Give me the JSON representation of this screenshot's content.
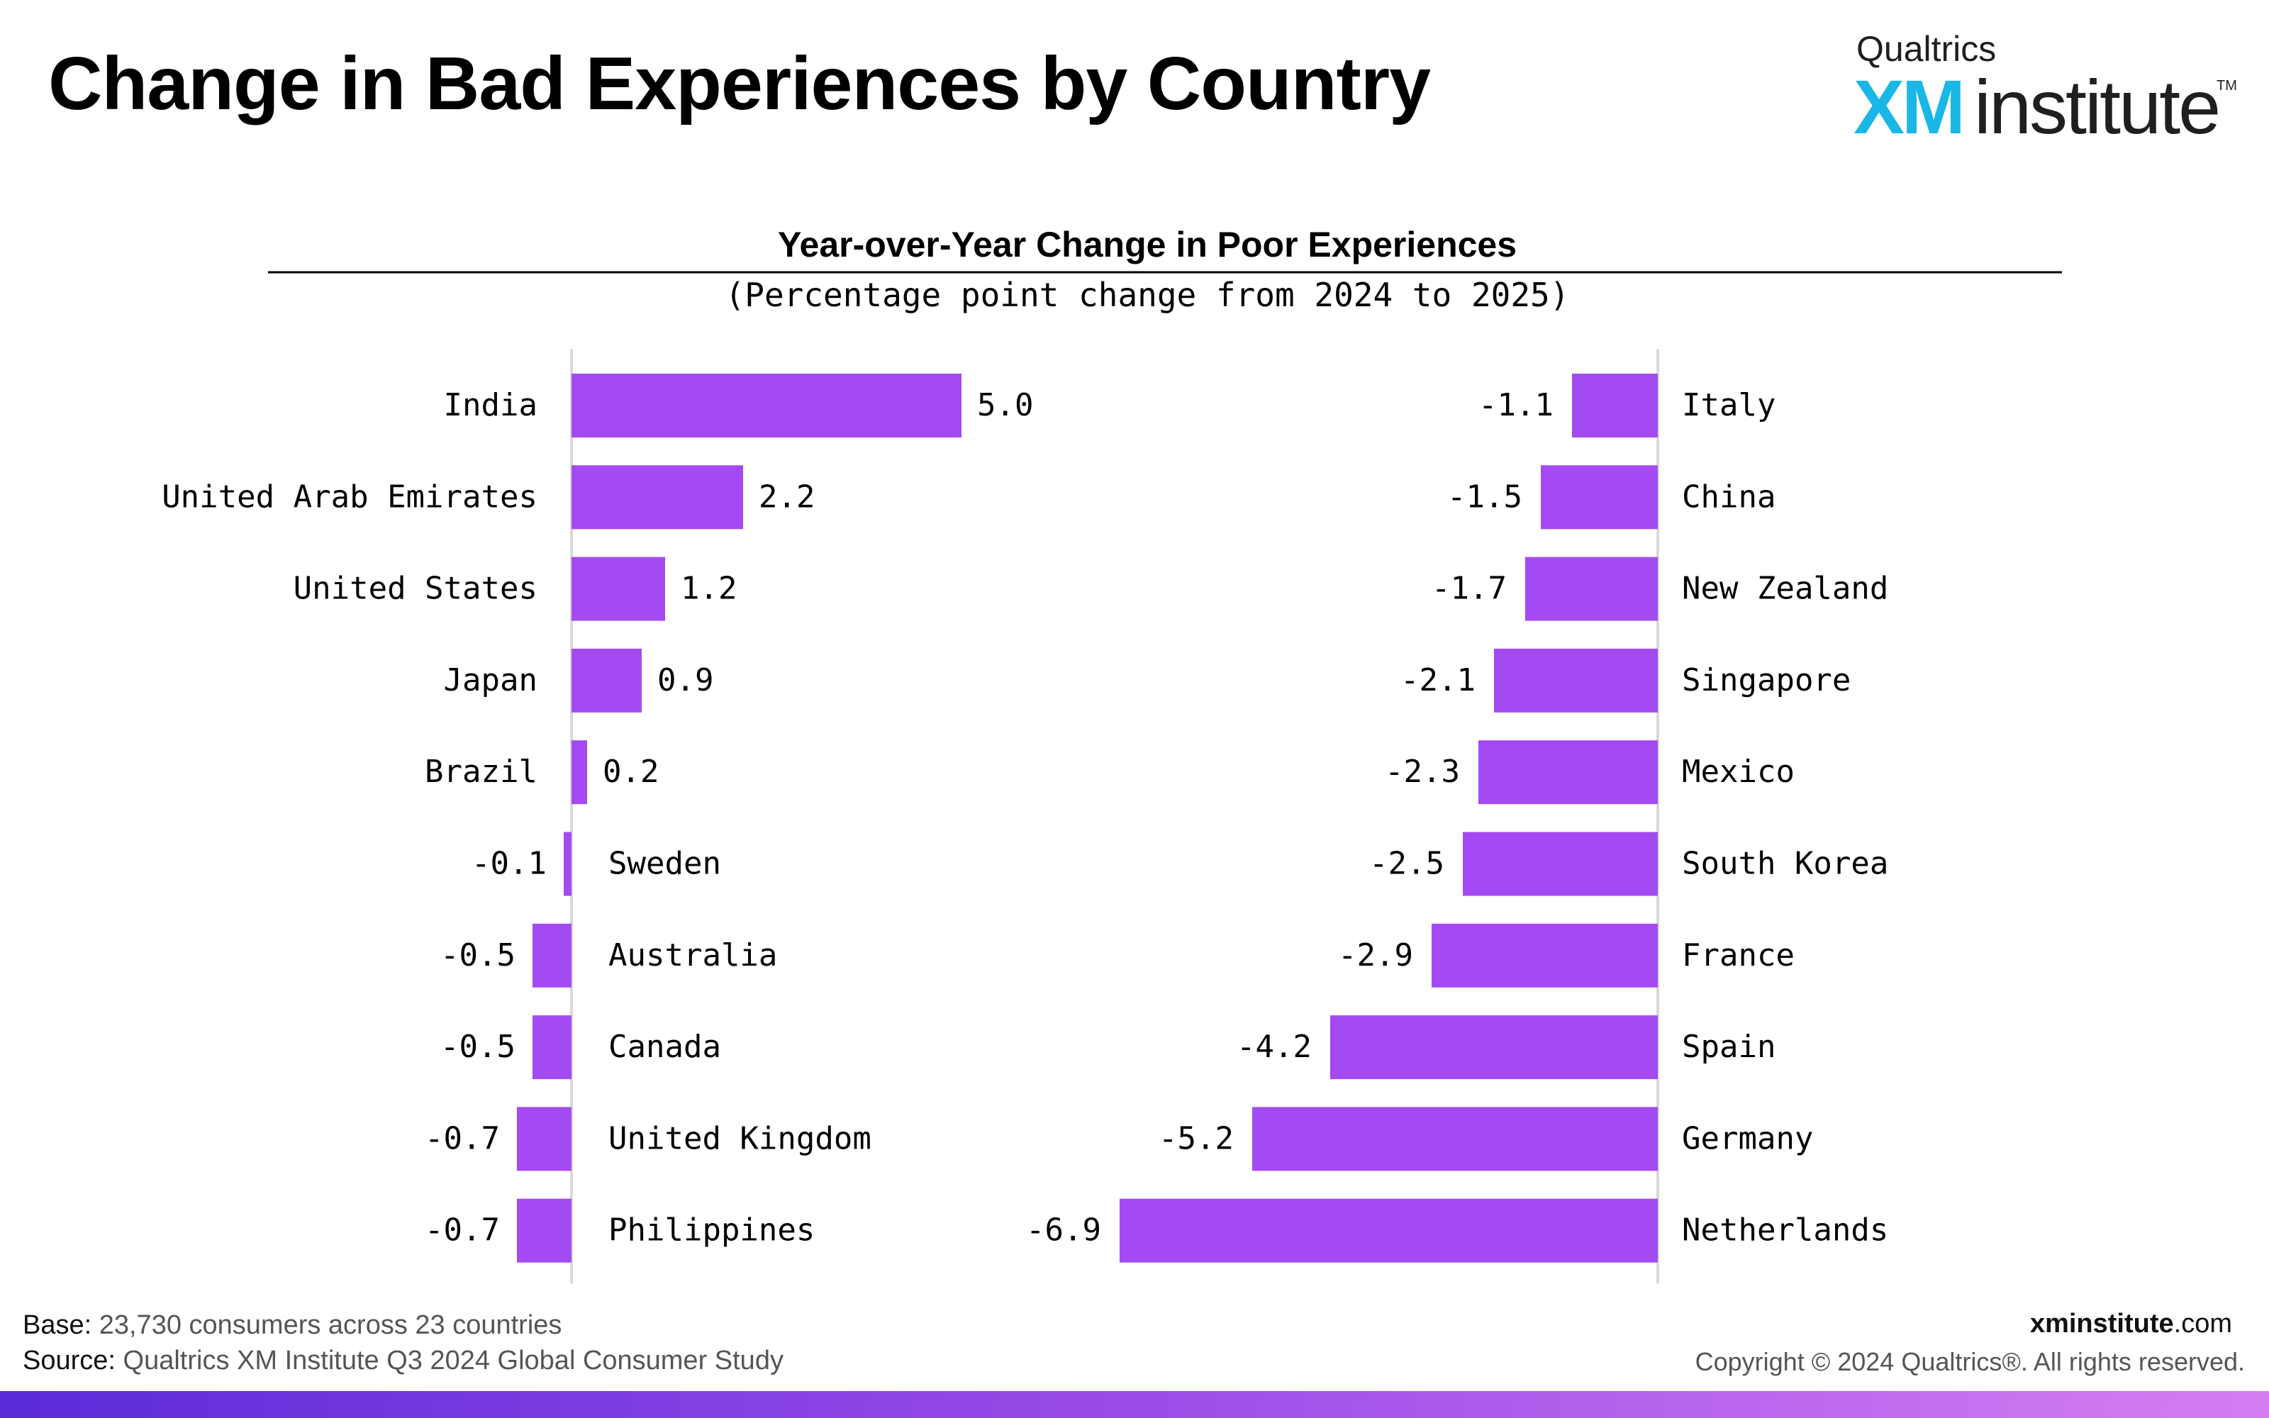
{
  "page": {
    "title": "Change in Bad Experiences by Country"
  },
  "logo": {
    "top": "Qualtrics",
    "xm": "XM",
    "institute": "institute",
    "tm": "TM"
  },
  "footer": {
    "base_label": "Base:",
    "base_text": " 23,730 consumers across 23 countries",
    "source_label": "Source:",
    "source_text": " Qualtrics XM Institute Q3 2024 Global Consumer Study",
    "site_bold": "xminstitute",
    "site_rest": ".com",
    "copyright": "Copyright © 2024 Qualtrics®. All rights reserved."
  },
  "colors": {
    "bar": "#a44af2",
    "axis": "#d9d9d9",
    "gradient_start": "#5b2bd9",
    "gradient_end": "#d57ef2",
    "logo_accent": "#19b7e6"
  },
  "chart_data": [
    {
      "type": "bar",
      "orientation": "horizontal",
      "title": "Year-over-Year Change in Poor Experiences",
      "subtitle": "(Percentage point change from 2024 to 2025)",
      "categories": [
        "India",
        "United Arab Emirates",
        "United States",
        "Japan",
        "Brazil",
        "Sweden",
        "Australia",
        "Canada",
        "United Kingdom",
        "Philippines"
      ],
      "values": [
        5.0,
        2.2,
        1.2,
        0.9,
        0.2,
        -0.1,
        -0.5,
        -0.5,
        -0.7,
        -0.7
      ],
      "value_labels": [
        "5.0",
        "2.2",
        "1.2",
        "0.9",
        "0.2",
        "-0.1",
        "-0.5",
        "-0.5",
        "-0.7",
        "-0.7"
      ],
      "grid": false,
      "data_labels": true
    },
    {
      "type": "bar",
      "orientation": "horizontal",
      "categories": [
        "Italy",
        "China",
        "New Zealand",
        "Singapore",
        "Mexico",
        "South Korea",
        "France",
        "Spain",
        "Germany",
        "Netherlands"
      ],
      "values": [
        -1.1,
        -1.5,
        -1.7,
        -2.1,
        -2.3,
        -2.5,
        -2.9,
        -4.2,
        -5.2,
        -6.9
      ],
      "value_labels": [
        "-1.1",
        "-1.5",
        "-1.7",
        "-2.1",
        "-2.3",
        "-2.5",
        "-2.9",
        "-4.2",
        "-5.2",
        "-6.9"
      ],
      "grid": false,
      "data_labels": true
    }
  ]
}
